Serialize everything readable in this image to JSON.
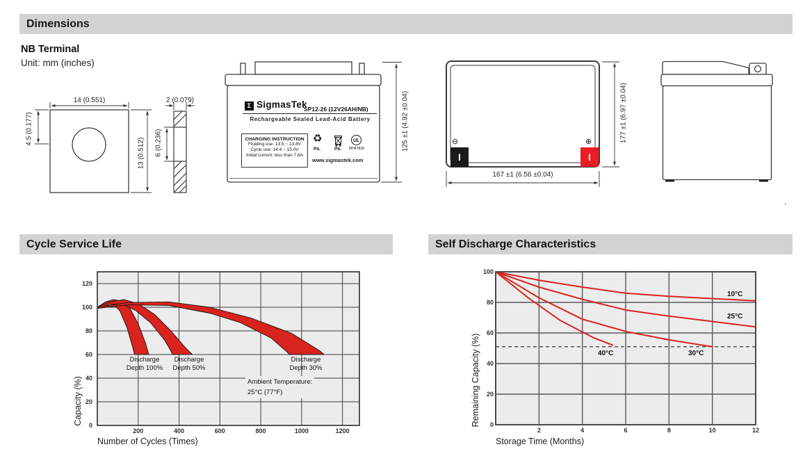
{
  "sections": {
    "dimensions": {
      "title": "Dimensions"
    },
    "cycle": {
      "title": "Cycle Service Life"
    },
    "self_discharge": {
      "title": "Self Discharge Characteristics"
    }
  },
  "terminal_note": {
    "heading": "NB Terminal",
    "unit": "Unit: mm (inches)"
  },
  "drawings": {
    "terminal_front": {
      "width_dim": "14 (0.551)",
      "offset_dim": "4.5 (0.177)",
      "height_dim": "13 (0.512)"
    },
    "terminal_side": {
      "thickness_dim": "2 (0.079)",
      "depth_dim": "6 (0.236)"
    },
    "battery_front": {
      "logo_glyph": "Σ",
      "brand": "SigmasTek",
      "model": "SP12-26 (12V26AH/NB)",
      "subtitle": "Rechargeable Sealed Lead-Acid Battery",
      "charging_title": "CHARGING INSTRUCTION",
      "charging_lines": [
        "Floating use: 13.5 ~ 13.8V",
        "Cycle use: 14.4 ~ 15.0V",
        "Initial current: less than 7.8A"
      ],
      "recycle_glyph": "♻",
      "pb_recycle_label": "Pb.",
      "pb_trash_label": "Pb.",
      "ul_mark": "UL",
      "ul_number": "MH47828",
      "website": "www.sigmastek.com",
      "height_dim": "125 ±1 (4.92 ±0.04)"
    },
    "battery_top": {
      "minus_symbol": "⊖",
      "plus_symbol": "⊕",
      "terminal_mark_neg": "I",
      "terminal_mark_pos": "I",
      "width_dim": "167 ±1 (6.56 ±0.04)",
      "height_dim": "177 ±1 (6.97 ±0.04)"
    },
    "stray_mark": "."
  },
  "chart_data": [
    {
      "type": "area",
      "title": "Cycle Service Life",
      "xlabel": "Number of Cycles (Times)",
      "ylabel": "Capacity (%)",
      "xlim": [
        0,
        1283
      ],
      "ylim": [
        0,
        130
      ],
      "x_ticks": [
        200,
        400,
        600,
        800,
        1000,
        1200
      ],
      "y_ticks": [
        0,
        20,
        40,
        60,
        80,
        100,
        120
      ],
      "grid": true,
      "legend_position": "none",
      "annotation_lines": [
        "Ambient Temperature:",
        "25°C (77°F)"
      ],
      "bands": [
        {
          "name": "Discharge Depth 100%",
          "label_lines": [
            "Discharge",
            "Depth 100%"
          ],
          "upper": [
            [
              0,
              100
            ],
            [
              40,
              104.5
            ],
            [
              80,
              106.5
            ],
            [
              120,
              105
            ],
            [
              160,
              99
            ],
            [
              200,
              86
            ],
            [
              235,
              70
            ],
            [
              252,
              60
            ]
          ],
          "lower": [
            [
              0,
              99
            ],
            [
              40,
              102.5
            ],
            [
              75,
              103
            ],
            [
              110,
              97
            ],
            [
              145,
              83
            ],
            [
              175,
              65
            ],
            [
              182,
              60
            ]
          ]
        },
        {
          "name": "Discharge Depth 50%",
          "label_lines": [
            "Discharge",
            "Depth 50%"
          ],
          "upper": [
            [
              0,
              100
            ],
            [
              60,
              104.5
            ],
            [
              130,
              106.5
            ],
            [
              200,
              103
            ],
            [
              280,
              94
            ],
            [
              360,
              80
            ],
            [
              430,
              66
            ],
            [
              465,
              60
            ]
          ],
          "lower": [
            [
              0,
              99
            ],
            [
              60,
              102.5
            ],
            [
              120,
              103
            ],
            [
              190,
              97
            ],
            [
              260,
              87
            ],
            [
              330,
              72
            ],
            [
              360,
              63
            ],
            [
              368,
              60
            ]
          ]
        },
        {
          "name": "Discharge Depth 30%",
          "label_lines": [
            "Discharge",
            "Depth 30%"
          ],
          "upper": [
            [
              0,
              100
            ],
            [
              150,
              104
            ],
            [
              350,
              104.5
            ],
            [
              550,
              100
            ],
            [
              750,
              91
            ],
            [
              950,
              78
            ],
            [
              1090,
              63
            ],
            [
              1110,
              60
            ]
          ],
          "lower": [
            [
              0,
              99
            ],
            [
              150,
              102
            ],
            [
              350,
              101.5
            ],
            [
              550,
              95
            ],
            [
              700,
              87
            ],
            [
              850,
              74
            ],
            [
              930,
              62
            ],
            [
              940,
              60
            ]
          ]
        }
      ]
    },
    {
      "type": "line",
      "title": "Self Discharge Characteristics",
      "xlabel": "Storage Time (Months)",
      "ylabel": "Remaining Capacity (%)",
      "xlim": [
        0,
        12
      ],
      "ylim": [
        0,
        100
      ],
      "x_ticks": [
        2,
        4,
        6,
        8,
        10,
        12
      ],
      "y_ticks": [
        0,
        20,
        40,
        60,
        80,
        100
      ],
      "grid": true,
      "dashed_guide_y": 51,
      "series": [
        {
          "name": "10°C",
          "points": [
            [
              0,
              100
            ],
            [
              2,
              94.5
            ],
            [
              4,
              90
            ],
            [
              6,
              86
            ],
            [
              8,
              84
            ],
            [
              10,
              82.5
            ],
            [
              12,
              81
            ]
          ]
        },
        {
          "name": "25°C",
          "points": [
            [
              0,
              100
            ],
            [
              2,
              90
            ],
            [
              4,
              82
            ],
            [
              6,
              75
            ],
            [
              8,
              71
            ],
            [
              10,
              67.5
            ],
            [
              12,
              64
            ]
          ]
        },
        {
          "name": "30°C",
          "points": [
            [
              0,
              100
            ],
            [
              2,
              83
            ],
            [
              4,
              69
            ],
            [
              6,
              61
            ],
            [
              8,
              55.5
            ],
            [
              10,
              51
            ]
          ]
        },
        {
          "name": "40°C",
          "points": [
            [
              0,
              100
            ],
            [
              1.5,
              83
            ],
            [
              3,
              68
            ],
            [
              4.5,
              57
            ],
            [
              5.4,
              52
            ]
          ]
        }
      ]
    }
  ],
  "colors": {
    "header_bar": "#d2d2d2",
    "red": "#d8231f",
    "terminal_red": "#ec1c24",
    "terminal_black": "#1b1b1b",
    "plot_bg": "#ececec",
    "grid_dark": "#3c3c3c",
    "grid_gray": "#585858"
  }
}
